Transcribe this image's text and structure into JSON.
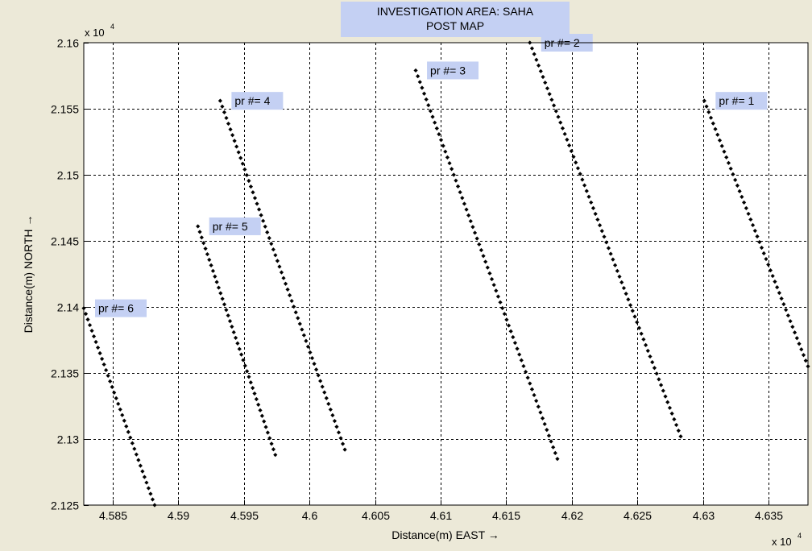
{
  "chart_data": {
    "type": "scatter",
    "title": [
      "INVESTIGATION AREA:  SAHA",
      "POST MAP"
    ],
    "xlabel": "Distance(m) EAST →",
    "ylabel": "Distance(m) NORTH →",
    "x_multiplier": {
      "base": "x 10",
      "exponent": "4"
    },
    "y_multiplier": {
      "base": "x 10",
      "exponent": "4"
    },
    "xlim": [
      4.5828,
      4.638
    ],
    "ylim": [
      2.125,
      2.16
    ],
    "xticks": [
      4.585,
      4.59,
      4.595,
      4.6,
      4.605,
      4.61,
      4.615,
      4.62,
      4.625,
      4.63,
      4.635
    ],
    "xtick_labels": [
      "4.585",
      "4.59",
      "4.595",
      "4.6",
      "4.605",
      "4.61",
      "4.615",
      "4.62",
      "4.625",
      "4.63",
      "4.635"
    ],
    "yticks": [
      2.125,
      2.13,
      2.135,
      2.14,
      2.145,
      2.15,
      2.155,
      2.16
    ],
    "ytick_labels": [
      "2.125",
      "2.13",
      "2.135",
      "2.14",
      "2.145",
      "2.15",
      "2.155",
      "2.16"
    ],
    "grid": true,
    "marker_color": "#000000",
    "label_bg_color": "#c4d0f3",
    "series": [
      {
        "label": "pr #= 1",
        "start": [
          4.6301,
          2.1556
        ],
        "end": [
          4.638,
          2.1355
        ],
        "points": 48
      },
      {
        "label": "pr #= 2",
        "start": [
          4.6168,
          2.16
        ],
        "end": [
          4.6283,
          2.1302
        ],
        "points": 70
      },
      {
        "label": "pr #= 3",
        "start": [
          4.6081,
          2.1579
        ],
        "end": [
          4.6189,
          2.1285
        ],
        "points": 68
      },
      {
        "label": "pr #= 4",
        "start": [
          4.5932,
          2.1556
        ],
        "end": [
          4.6027,
          2.1292
        ],
        "points": 62
      },
      {
        "label": "pr #= 5",
        "start": [
          4.5915,
          2.1461
        ],
        "end": [
          4.5974,
          2.1288
        ],
        "points": 42
      },
      {
        "label": "pr #= 6",
        "start": [
          4.5828,
          2.1399
        ],
        "end": [
          4.5882,
          2.125
        ],
        "points": 36
      }
    ]
  }
}
